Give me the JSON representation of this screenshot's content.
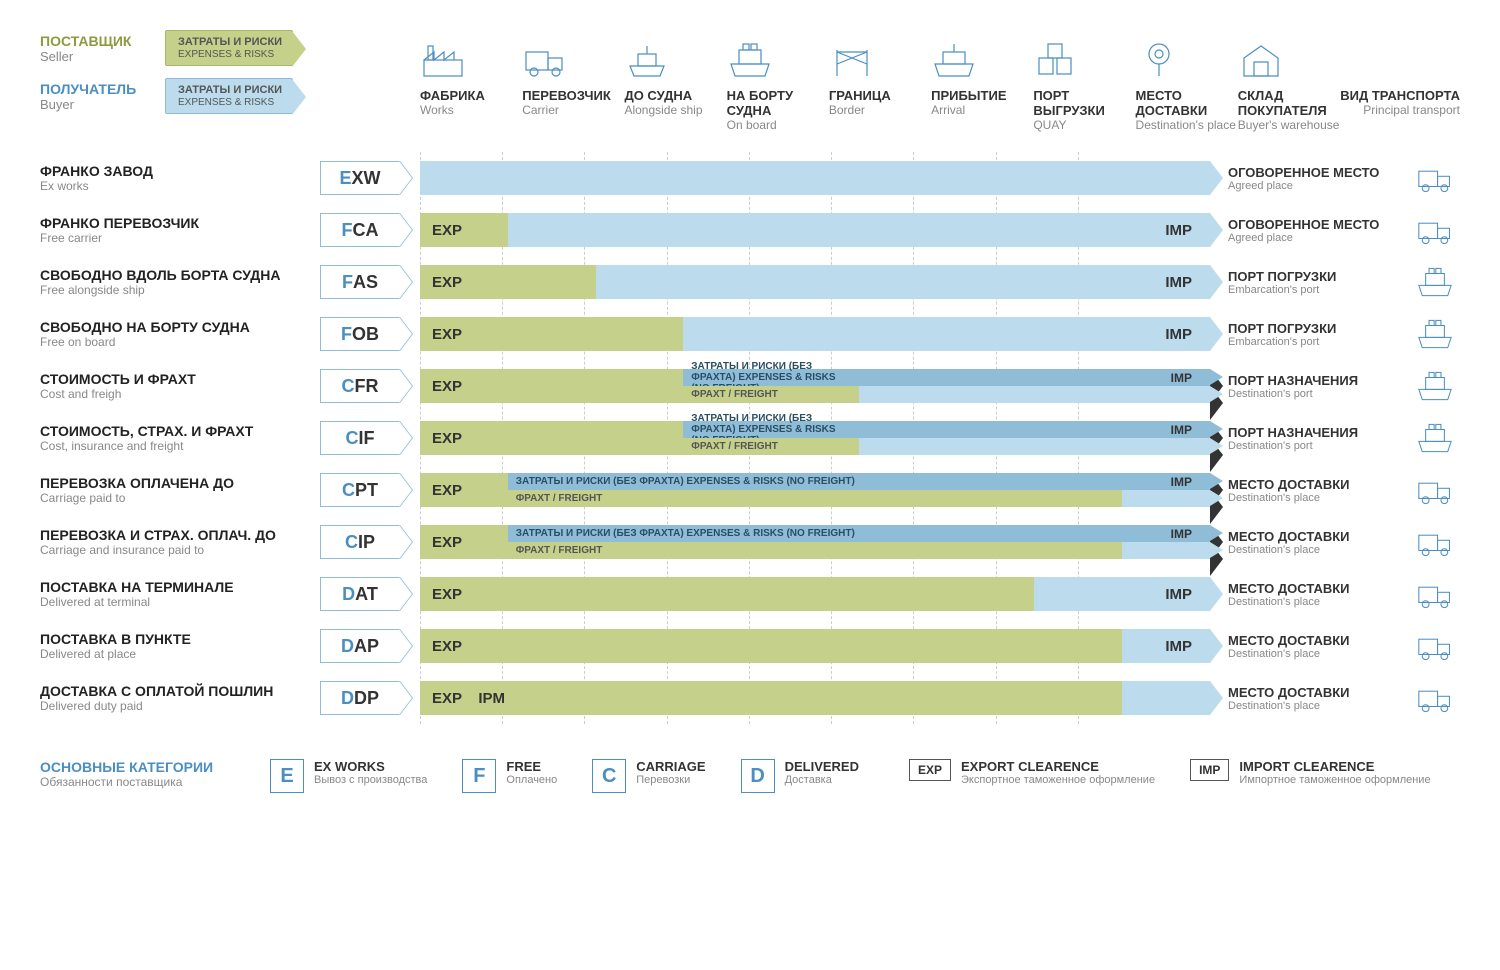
{
  "colors": {
    "seller": "#8b9b3f",
    "buyer": "#4a8ec2",
    "seller_fill": "#c5d08a",
    "buyer_fill": "#bcdced",
    "buyer_dark": "#8fbdd8",
    "text_grey": "#888888",
    "text_dark": "#333333",
    "grid": "#cccccc",
    "background": "#ffffff"
  },
  "legend": {
    "seller_ru": "ПОСТАВЩИК",
    "seller_en": "Seller",
    "buyer_ru": "ПОЛУЧАТЕЛЬ",
    "buyer_en": "Buyer",
    "badge_ru": "ЗАТРАТЫ И РИСКИ",
    "badge_en": "EXPENSES & RISKS"
  },
  "stages": [
    {
      "ru": "ФАБРИКА",
      "en": "Works",
      "icon": "factory"
    },
    {
      "ru": "ПЕРЕВОЗЧИК",
      "en": "Carrier",
      "icon": "truck"
    },
    {
      "ru": "ДО СУДНА",
      "en": "Alongside ship",
      "icon": "ship-side"
    },
    {
      "ru": "НА БОРТУ СУДНА",
      "en": "On board",
      "icon": "ship"
    },
    {
      "ru": "ГРАНИЦА",
      "en": "Border",
      "icon": "gate"
    },
    {
      "ru": "ПРИБЫТИЕ",
      "en": "Arrival",
      "icon": "ship-arr"
    },
    {
      "ru": "ПОРТ ВЫГРУЗКИ",
      "en": "QUAY",
      "icon": "containers"
    },
    {
      "ru": "МЕСТО ДОСТАВКИ",
      "en": "Destination's place",
      "icon": "pin"
    },
    {
      "ru": "СКЛАД ПОКУПАТЕЛЯ",
      "en": "Buyer's warehouse",
      "icon": "warehouse"
    }
  ],
  "transport_header": {
    "ru": "ВИД ТРАНСПОРТА",
    "en": "Principal transport"
  },
  "split_text": {
    "top": "ЗАТРАТЫ И РИСКИ (БЕЗ ФРАХТА) EXPENSES & RISKS (NO FREIGHT)",
    "bot": "ФРАХТ / FREIGHT"
  },
  "exp": "EXP",
  "imp": "IMP",
  "ipm": "IPM",
  "rows": [
    {
      "code": "EXW",
      "ru": "ФРАНКО ЗАВОД",
      "en": "Ex works",
      "seller_start": 0,
      "seller_end": 0,
      "split": null,
      "buyer_start": 0,
      "buyer_end": 9,
      "show_exp": false,
      "show_imp": false,
      "dest_ru": "ОГОВОРЕННОЕ МЕСТО",
      "dest_en": "Agreed place",
      "trans": "truck"
    },
    {
      "code": "FCA",
      "ru": "ФРАНКО ПЕРЕВОЗЧИК",
      "en": "Free carrier",
      "seller_start": 0,
      "seller_end": 1,
      "split": null,
      "buyer_start": 1,
      "buyer_end": 9,
      "show_exp": true,
      "show_imp": true,
      "dest_ru": "ОГОВОРЕННОЕ МЕСТО",
      "dest_en": "Agreed place",
      "trans": "truck"
    },
    {
      "code": "FAS",
      "ru": "СВОБОДНО ВДОЛЬ БОРТА СУДНА",
      "en": "Free alongside ship",
      "seller_start": 0,
      "seller_end": 2,
      "split": null,
      "buyer_start": 2,
      "buyer_end": 9,
      "show_exp": true,
      "show_imp": true,
      "dest_ru": "ПОРТ ПОГРУЗКИ",
      "dest_en": "Embarcation's port",
      "trans": "ship"
    },
    {
      "code": "FOB",
      "ru": "СВОБОДНО НА БОРТУ СУДНА",
      "en": "Free on board",
      "seller_start": 0,
      "seller_end": 3,
      "split": null,
      "buyer_start": 3,
      "buyer_end": 9,
      "show_exp": true,
      "show_imp": true,
      "dest_ru": "ПОРТ ПОГРУЗКИ",
      "dest_en": "Embarcation's port",
      "trans": "ship"
    },
    {
      "code": "CFR",
      "ru": "СТОИМОСТЬ И ФРАХТ",
      "en": "Cost and freigh",
      "seller_start": 0,
      "seller_end": 3,
      "split": {
        "start": 3,
        "end": 5,
        "seller_cont_to": 5
      },
      "buyer_start": 3,
      "buyer_end": 9,
      "show_exp": true,
      "show_imp": true,
      "dest_ru": "ПОРТ НАЗНАЧЕНИЯ",
      "dest_en": "Destination's port",
      "trans": "ship"
    },
    {
      "code": "CIF",
      "ru": "СТОИМОСТЬ, СТРАХ. И ФРАХТ",
      "en": "Cost, insurance and freight",
      "seller_start": 0,
      "seller_end": 3,
      "split": {
        "start": 3,
        "end": 5,
        "seller_cont_to": 5
      },
      "buyer_start": 3,
      "buyer_end": 9,
      "show_exp": true,
      "show_imp": true,
      "dest_ru": "ПОРТ НАЗНАЧЕНИЯ",
      "dest_en": "Destination's port",
      "trans": "ship"
    },
    {
      "code": "CPT",
      "ru": "ПЕРЕВОЗКА ОПЛАЧЕНА ДО",
      "en": "Carriage paid to",
      "seller_start": 0,
      "seller_end": 1,
      "split": {
        "start": 1,
        "end": 8,
        "seller_cont_to": 8
      },
      "buyer_start": 1,
      "buyer_end": 9,
      "show_exp": true,
      "show_imp": true,
      "dest_ru": "МЕСТО ДОСТАВКИ",
      "dest_en": "Destination's place",
      "trans": "truck"
    },
    {
      "code": "CIP",
      "ru": "ПЕРЕВОЗКА И СТРАХ. ОПЛАЧ. ДО",
      "en": "Carriage and insurance paid to",
      "seller_start": 0,
      "seller_end": 1,
      "split": {
        "start": 1,
        "end": 8,
        "seller_cont_to": 8
      },
      "buyer_start": 1,
      "buyer_end": 9,
      "show_exp": true,
      "show_imp": true,
      "dest_ru": "МЕСТО ДОСТАВКИ",
      "dest_en": "Destination's place",
      "trans": "truck"
    },
    {
      "code": "DAT",
      "ru": "ПОСТАВКА НА ТЕРМИНАЛЕ",
      "en": "Delivered at terminal",
      "seller_start": 0,
      "seller_end": 7,
      "split": null,
      "buyer_start": 7,
      "buyer_end": 9,
      "show_exp": true,
      "show_imp": true,
      "dest_ru": "МЕСТО ДОСТАВКИ",
      "dest_en": "Destination's place",
      "trans": "truck"
    },
    {
      "code": "DAP",
      "ru": "ПОСТАВКА В ПУНКТЕ",
      "en": "Delivered at place",
      "seller_start": 0,
      "seller_end": 8,
      "split": null,
      "buyer_start": 8,
      "buyer_end": 9,
      "show_exp": true,
      "show_imp": true,
      "dest_ru": "МЕСТО ДОСТАВКИ",
      "dest_en": "Destination's place",
      "trans": "truck"
    },
    {
      "code": "DDP",
      "ru": "ДОСТАВКА С ОПЛАТОЙ ПОШЛИН",
      "en": "Delivered duty paid",
      "seller_start": 0,
      "seller_end": 8,
      "split": null,
      "buyer_start": 8,
      "buyer_end": 9,
      "show_exp": true,
      "show_imp": false,
      "show_ipm": true,
      "dest_ru": "МЕСТО ДОСТАВКИ",
      "dest_en": "Destination's place",
      "trans": "truck"
    }
  ],
  "footer": {
    "lead_ru": "ОСНОВНЫЕ КАТЕГОРИИ",
    "lead_en": "Обязанности поставщика",
    "cats": [
      {
        "letter": "E",
        "ru": "EX WORKS",
        "en": "Вывоз с производства"
      },
      {
        "letter": "F",
        "ru": "FREE",
        "en": "Оплачено"
      },
      {
        "letter": "C",
        "ru": "CARRIAGE",
        "en": "Перевозки"
      },
      {
        "letter": "D",
        "ru": "DELIVERED",
        "en": "Доставка"
      }
    ],
    "clearances": [
      {
        "tag": "EXP",
        "ru": "EXPORT CLEARENCE",
        "en": "Экспортное таможенное оформление"
      },
      {
        "tag": "IMP",
        "ru": "IMPORT CLEARENCE",
        "en": "Импортное таможенное оформление"
      }
    ]
  }
}
